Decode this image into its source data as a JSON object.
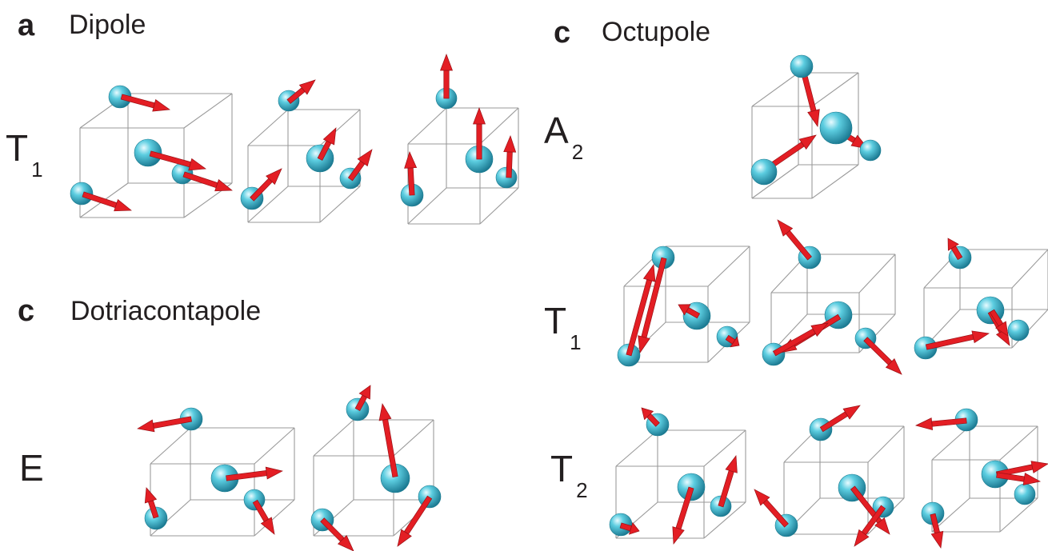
{
  "panels": {
    "dipole": {
      "letter": "a",
      "title": "Dipole"
    },
    "octupole": {
      "letter": "c",
      "title": "Octupole"
    },
    "dotriacontapole": {
      "letter": "c",
      "title": "Dotriacontapole"
    }
  },
  "irreps": {
    "dipole_t1": {
      "main": "T",
      "sub": "1"
    },
    "octupole_a2": {
      "main": "A",
      "sub": "2"
    },
    "octupole_t1": {
      "main": "T",
      "sub": "1"
    },
    "octupole_t2": {
      "main": "T",
      "sub": "2"
    },
    "dotriacontapole_e": {
      "main": "E",
      "sub": ""
    }
  },
  "colors": {
    "sphere": "#36b6cc",
    "arrow": "#e31e24",
    "arrow_dark": "#9a1015",
    "cube_edge": "#9a9a9a",
    "text": "#231f20"
  }
}
